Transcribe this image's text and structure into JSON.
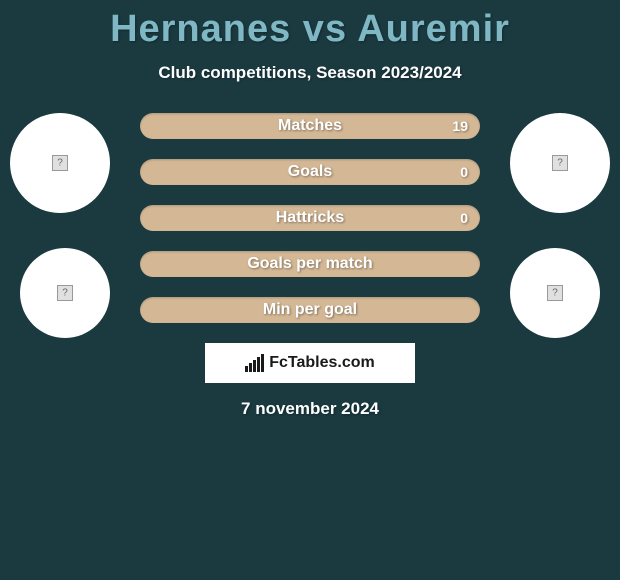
{
  "header": {
    "title": "Hernanes vs Auremir",
    "subtitle": "Club competitions, Season 2023/2024"
  },
  "styling": {
    "background_color": "#1a3a40",
    "title_color": "#7fb8c4",
    "bar_color": "#d4b896",
    "text_color": "#ffffff",
    "avatar_bg": "#ffffff",
    "title_fontsize": 38,
    "subtitle_fontsize": 17
  },
  "stats": [
    {
      "label": "Matches",
      "value_right": "19"
    },
    {
      "label": "Goals",
      "value_right": "0"
    },
    {
      "label": "Hattricks",
      "value_right": "0"
    },
    {
      "label": "Goals per match",
      "value_right": ""
    },
    {
      "label": "Min per goal",
      "value_right": ""
    }
  ],
  "footer": {
    "logo_text": "FcTables.com",
    "date": "7 november 2024"
  }
}
